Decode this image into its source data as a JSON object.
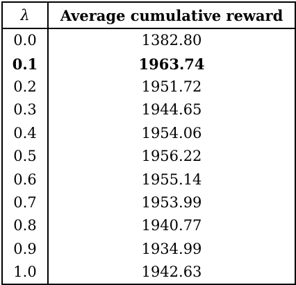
{
  "table": {
    "headers": {
      "lambda": "λ",
      "reward": "Average cumulative reward"
    },
    "rows": [
      {
        "lambda": "0.0",
        "reward": "1382.80",
        "best": false
      },
      {
        "lambda": "0.1",
        "reward": "1963.74",
        "best": true
      },
      {
        "lambda": "0.2",
        "reward": "1951.72",
        "best": false
      },
      {
        "lambda": "0.3",
        "reward": "1944.65",
        "best": false
      },
      {
        "lambda": "0.4",
        "reward": "1954.06",
        "best": false
      },
      {
        "lambda": "0.5",
        "reward": "1956.22",
        "best": false
      },
      {
        "lambda": "0.6",
        "reward": "1955.14",
        "best": false
      },
      {
        "lambda": "0.7",
        "reward": "1953.99",
        "best": false
      },
      {
        "lambda": "0.8",
        "reward": "1940.77",
        "best": false
      },
      {
        "lambda": "0.9",
        "reward": "1934.99",
        "best": false
      },
      {
        "lambda": "1.0",
        "reward": "1942.63",
        "best": false
      }
    ]
  }
}
